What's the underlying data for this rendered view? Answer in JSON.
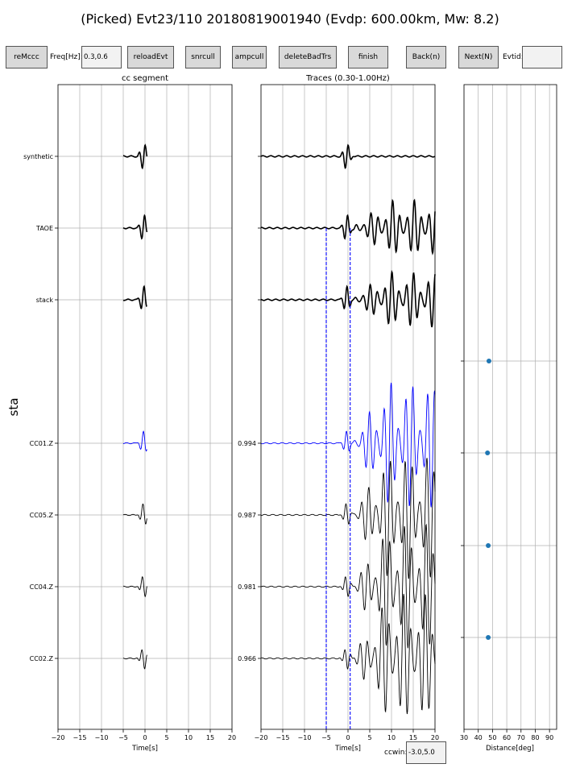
{
  "title": "(Picked) Evt23/110 20180819001940 (Evdp: 600.00km, Mw: 8.2)",
  "controls": {
    "remccc": "reMccc",
    "freq_label": "Freq[Hz]:",
    "freq_value": "0.3,0.6",
    "reload": "reloadEvt",
    "snrcull": "snrcull",
    "ampcull": "ampcull",
    "delete": "deleteBadTrs",
    "finish": "finish",
    "back": "Back(n)",
    "next": "Next(N)",
    "evtid_label": "Evtid:",
    "evtid_value": "",
    "ccwin_label": "ccwin:",
    "ccwin_value": "-3.0,5.0"
  },
  "colors": {
    "black": "#000000",
    "blue": "#0000ff",
    "dot": "#1f77b4",
    "grid": "#b0b0b0"
  },
  "chart_data": [
    {
      "type": "line",
      "title": "cc segment",
      "xlabel": "Time[s]",
      "ylabel": "sta",
      "xlim": [
        -20,
        20
      ],
      "xticks": [
        "−20",
        "−15",
        "−10",
        "−5",
        "0",
        "5",
        "10",
        "15",
        "20"
      ],
      "grid": true,
      "stations": [
        "synthetic",
        "TAOE",
        "stack",
        "CC01.Z",
        "CC05.Z",
        "CC04.Z",
        "CC02.Z"
      ],
      "segment_window": [
        -5,
        0.5
      ]
    },
    {
      "type": "line",
      "title": "Traces (0.30-1.00Hz)",
      "xlabel": "Time[s]",
      "xlim": [
        -20,
        20
      ],
      "xticks": [
        "−20",
        "−15",
        "−10",
        "−5",
        "0",
        "5",
        "10",
        "15",
        "20"
      ],
      "grid": true,
      "cc_values": [
        "0.994",
        "0.987",
        "0.981",
        "0.966"
      ],
      "window_lines": [
        -5,
        0.5
      ]
    },
    {
      "type": "scatter",
      "xlabel": "Distance[deg]",
      "xlim": [
        30,
        95
      ],
      "xticks": [
        "30",
        "40",
        "50",
        "60",
        "70",
        "80",
        "90"
      ],
      "grid": true,
      "points": [
        {
          "station": "CC01.Z",
          "distance": 47.5
        },
        {
          "station": "CC05.Z",
          "distance": 46.5
        },
        {
          "station": "CC04.Z",
          "distance": 47.0
        },
        {
          "station": "CC02.Z",
          "distance": 47.0
        }
      ]
    }
  ]
}
